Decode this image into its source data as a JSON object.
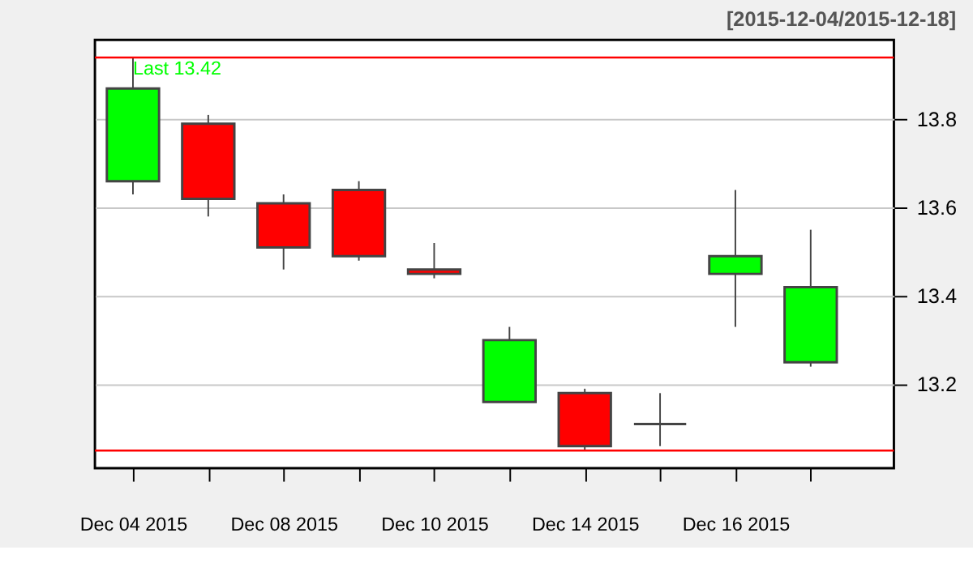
{
  "chart_data": {
    "type": "candlestick",
    "title": "[2015-12-04/2015-12-18]",
    "categories": [
      "Dec 04 2015",
      null,
      "Dec 08 2015",
      null,
      "Dec 10 2015",
      null,
      "Dec 14 2015",
      null,
      "Dec 16 2015",
      null
    ],
    "ohlc": [
      [
        13.66,
        13.94,
        13.63,
        13.87
      ],
      [
        13.79,
        13.81,
        13.58,
        13.62
      ],
      [
        13.61,
        13.63,
        13.46,
        13.51
      ],
      [
        13.64,
        13.66,
        13.48,
        13.49
      ],
      [
        13.46,
        13.52,
        13.44,
        13.45
      ],
      [
        13.16,
        13.33,
        13.16,
        13.3
      ],
      [
        13.18,
        13.19,
        13.05,
        13.06
      ],
      [
        13.11,
        13.18,
        13.06,
        13.11
      ],
      [
        13.45,
        13.64,
        13.33,
        13.49
      ],
      [
        13.25,
        13.55,
        13.24,
        13.42
      ]
    ],
    "colors": [
      "#00ff00",
      "#ff0000",
      "#ff0000",
      "#ff0000",
      "#ff0000",
      "#00ff00",
      "#ff0000",
      "#444444",
      "#00ff00",
      "#00ff00"
    ],
    "ylim": [
      13.01,
      13.98
    ],
    "yticks": [
      13.2,
      13.4,
      13.6,
      13.8
    ],
    "grid": "y",
    "ref_lines": [
      {
        "axis": "y",
        "value": 13.94,
        "color": "#ff0000"
      },
      {
        "axis": "y",
        "value": 13.05,
        "color": "#ff0000"
      }
    ],
    "annotations": [
      "Last 13.42"
    ]
  }
}
